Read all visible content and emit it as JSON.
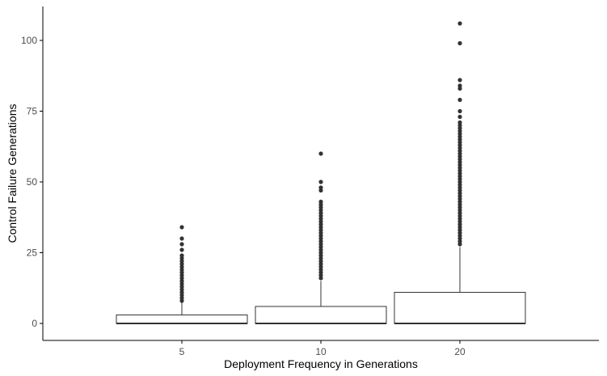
{
  "chart_data": {
    "type": "boxplot",
    "xlabel": "Deployment Frequency in Generations",
    "ylabel": "Control Failure Generations",
    "categories": [
      "5",
      "10",
      "20"
    ],
    "ylim": [
      -6,
      112
    ],
    "yticks": [
      0,
      25,
      50,
      75,
      100
    ],
    "grid": false,
    "boxes": [
      {
        "category": "5",
        "min": 0,
        "q1": 0,
        "median": 0,
        "q3": 3,
        "whisker_high": 8,
        "outliers": [
          8,
          9,
          10,
          11,
          12,
          13,
          14,
          15,
          16,
          17,
          18,
          19,
          20,
          21,
          22,
          23,
          24,
          26,
          28,
          30,
          34
        ]
      },
      {
        "category": "10",
        "min": 0,
        "q1": 0,
        "median": 0,
        "q3": 6,
        "whisker_high": 15,
        "outliers": [
          16,
          17,
          18,
          19,
          20,
          21,
          22,
          23,
          24,
          25,
          26,
          27,
          28,
          29,
          30,
          31,
          32,
          33,
          34,
          35,
          36,
          37,
          38,
          39,
          40,
          41,
          42,
          43,
          47,
          48,
          50,
          60
        ]
      },
      {
        "category": "20",
        "min": 0,
        "q1": 0,
        "median": 0,
        "q3": 11,
        "whisker_high": 27,
        "outliers": [
          28,
          29,
          30,
          31,
          32,
          33,
          34,
          35,
          36,
          37,
          38,
          39,
          40,
          41,
          42,
          43,
          44,
          45,
          46,
          47,
          48,
          49,
          50,
          51,
          52,
          53,
          54,
          55,
          56,
          57,
          58,
          59,
          60,
          61,
          62,
          63,
          64,
          65,
          66,
          67,
          68,
          69,
          70,
          71,
          73,
          75,
          79,
          83,
          84,
          86,
          99,
          106
        ]
      }
    ],
    "colors": {
      "box_stroke": "#333333",
      "outlier": "#333333",
      "axis": "#000000",
      "tick_text": "#4d4d4d"
    }
  }
}
